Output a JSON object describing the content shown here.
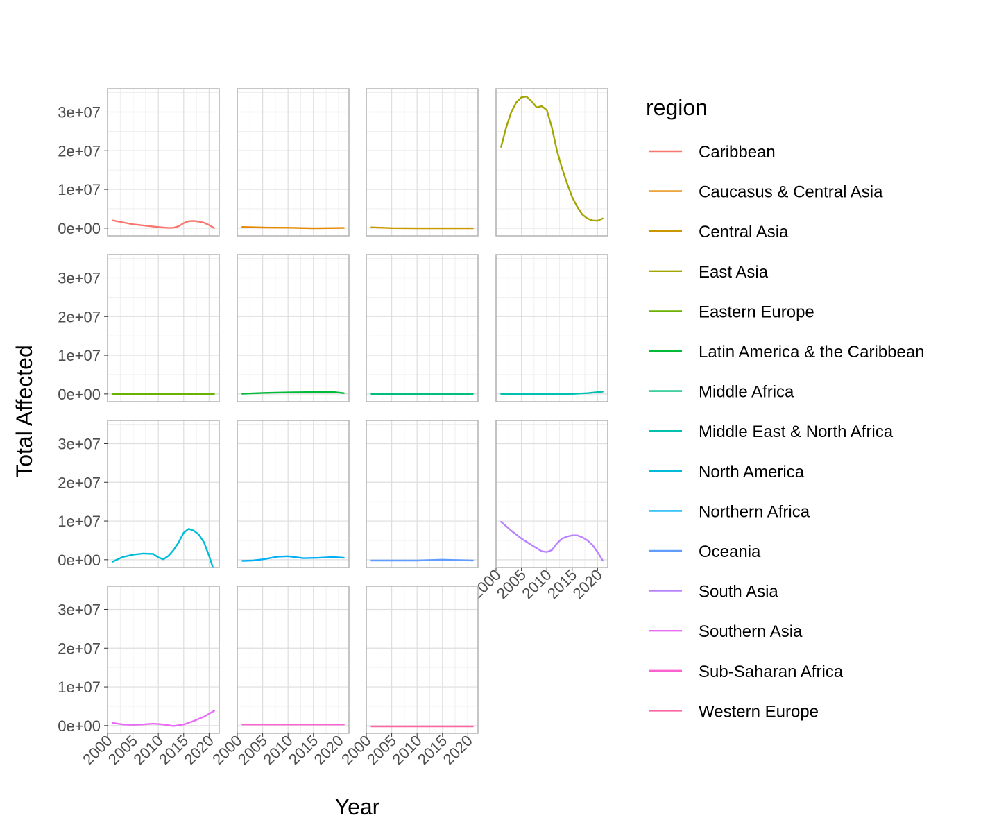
{
  "chart_data": {
    "type": "line",
    "layout": "facet-wrap",
    "xlabel": "Year",
    "ylabel": "Total Affected",
    "xlim": [
      2000,
      2022
    ],
    "ylim": [
      -2000000,
      36000000
    ],
    "x_ticks": [
      2000,
      2005,
      2010,
      2015,
      2020
    ],
    "y_ticks": [
      0,
      10000000,
      20000000,
      30000000
    ],
    "y_tick_labels": [
      "0e+00",
      "1e+07",
      "2e+07",
      "3e+07"
    ],
    "grid": true,
    "legend": {
      "title": "region",
      "position": "right"
    },
    "series": [
      {
        "name": "Caribbean",
        "color": "#F8766D",
        "x": [
          2001,
          2003,
          2005,
          2007,
          2009,
          2011,
          2012,
          2013,
          2014,
          2015,
          2016,
          2017,
          2018,
          2019,
          2020,
          2021
        ],
        "values": [
          2000000,
          1500000,
          1000000,
          700000,
          400000,
          150000,
          50000,
          100000,
          500000,
          1300000,
          1800000,
          1850000,
          1700000,
          1400000,
          800000,
          0
        ]
      },
      {
        "name": "Caucasus & Central Asia",
        "color": "#E58700",
        "x": [
          2001,
          2005,
          2010,
          2015,
          2021
        ],
        "values": [
          300000,
          150000,
          100000,
          -50000,
          50000
        ]
      },
      {
        "name": "Central Asia",
        "color": "#C99800",
        "x": [
          2001,
          2005,
          2010,
          2015,
          2021
        ],
        "values": [
          200000,
          0,
          -50000,
          -50000,
          -50000
        ]
      },
      {
        "name": "East Asia",
        "color": "#A3A500",
        "x": [
          2001,
          2002,
          2003,
          2004,
          2005,
          2006,
          2007,
          2008,
          2009,
          2010,
          2011,
          2012,
          2013,
          2014,
          2015,
          2016,
          2017,
          2018,
          2019,
          2020,
          2021
        ],
        "values": [
          21000000,
          26000000,
          30000000,
          32500000,
          33800000,
          34000000,
          32800000,
          31200000,
          31500000,
          30500000,
          26000000,
          20000000,
          15500000,
          11500000,
          8000000,
          5500000,
          3500000,
          2500000,
          2000000,
          1900000,
          2500000
        ]
      },
      {
        "name": "Eastern Europe",
        "color": "#6BB100",
        "x": [
          2001,
          2010,
          2021
        ],
        "values": [
          0,
          0,
          0
        ]
      },
      {
        "name": "Latin America & the Caribbean",
        "color": "#00BA38",
        "x": [
          2001,
          2005,
          2010,
          2015,
          2019,
          2021
        ],
        "values": [
          50000,
          250000,
          400000,
          500000,
          500000,
          200000
        ]
      },
      {
        "name": "Middle Africa",
        "color": "#00BF7D",
        "x": [
          2001,
          2010,
          2021
        ],
        "values": [
          0,
          0,
          0
        ]
      },
      {
        "name": "Middle East & North Africa",
        "color": "#00C0AF",
        "x": [
          2001,
          2010,
          2015,
          2018,
          2021
        ],
        "values": [
          0,
          0,
          0,
          200000,
          600000
        ]
      },
      {
        "name": "North America",
        "color": "#00BCD8",
        "x": [
          2001,
          2003,
          2005,
          2007,
          2009,
          2010,
          2011,
          2012,
          2013,
          2014,
          2015,
          2016,
          2017,
          2018,
          2019,
          2020,
          2021
        ],
        "values": [
          -500000,
          700000,
          1300000,
          1600000,
          1500000,
          600000,
          100000,
          1000000,
          2500000,
          4500000,
          7000000,
          8000000,
          7500000,
          6500000,
          4500000,
          1000000,
          -3000000
        ]
      },
      {
        "name": "Northern Africa",
        "color": "#00B0F6",
        "x": [
          2001,
          2003,
          2005,
          2008,
          2010,
          2013,
          2016,
          2019,
          2021
        ],
        "values": [
          -300000,
          -200000,
          100000,
          800000,
          900000,
          400000,
          500000,
          700000,
          500000
        ]
      },
      {
        "name": "Oceania",
        "color": "#619CFF",
        "x": [
          2001,
          2010,
          2015,
          2021
        ],
        "values": [
          -200000,
          -200000,
          0,
          -200000
        ]
      },
      {
        "name": "South Asia",
        "color": "#B983FF",
        "x": [
          2001,
          2003,
          2005,
          2007,
          2009,
          2010,
          2011,
          2012,
          2013,
          2014,
          2015,
          2016,
          2017,
          2018,
          2019,
          2020,
          2021
        ],
        "values": [
          9800000,
          7500000,
          5500000,
          3800000,
          2200000,
          2000000,
          2500000,
          4200000,
          5500000,
          6000000,
          6300000,
          6300000,
          5800000,
          5000000,
          3800000,
          2000000,
          -200000
        ]
      },
      {
        "name": "Southern Asia",
        "color": "#E76BF3",
        "x": [
          2001,
          2003,
          2005,
          2007,
          2009,
          2011,
          2013,
          2015,
          2017,
          2019,
          2021
        ],
        "values": [
          700000,
          300000,
          200000,
          300000,
          500000,
          300000,
          -100000,
          300000,
          1200000,
          2300000,
          3800000
        ]
      },
      {
        "name": "Sub-Saharan Africa",
        "color": "#FD61D1",
        "x": [
          2001,
          2010,
          2021
        ],
        "values": [
          300000,
          300000,
          300000
        ]
      },
      {
        "name": "Western Europe",
        "color": "#FF67A4",
        "x": [
          2001,
          2010,
          2021
        ],
        "values": [
          -200000,
          -200000,
          -200000
        ]
      }
    ]
  }
}
